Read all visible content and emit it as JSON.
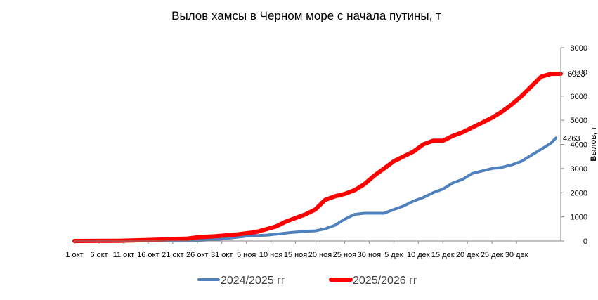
{
  "chart_data": {
    "type": "line",
    "title": "Вылов хамсы в Черном море с начала путины, т",
    "xlabel": "",
    "ylabel": "Вылов, т",
    "ylim": [
      0,
      8000
    ],
    "yticks": [
      0,
      1000,
      2000,
      3000,
      4000,
      5000,
      6000,
      7000,
      8000
    ],
    "y_axis_position": "right",
    "grid": false,
    "legend_position": "bottom",
    "x_tick_labels": [
      "1 окт",
      "6 окт",
      "11 окт",
      "16 окт",
      "21 окт",
      "26 окт",
      "31 окт",
      "5 ноя",
      "10 ноя",
      "15 ноя",
      "20 ноя",
      "25 ноя",
      "30 ноя",
      "5 дек",
      "10 дек",
      "15 дек",
      "20 дек",
      "25 дек",
      "30 дек"
    ],
    "x_day_range": [
      1,
      91
    ],
    "series": [
      {
        "name": "2024/2025 гг",
        "color": "#4F81BD",
        "end_label": "4263",
        "points": [
          [
            1,
            0
          ],
          [
            10,
            0
          ],
          [
            20,
            5
          ],
          [
            26,
            20
          ],
          [
            30,
            60
          ],
          [
            33,
            130
          ],
          [
            36,
            200
          ],
          [
            38,
            220
          ],
          [
            40,
            240
          ],
          [
            42,
            280
          ],
          [
            45,
            350
          ],
          [
            48,
            400
          ],
          [
            50,
            420
          ],
          [
            52,
            500
          ],
          [
            54,
            650
          ],
          [
            56,
            900
          ],
          [
            58,
            1100
          ],
          [
            60,
            1150
          ],
          [
            62,
            1150
          ],
          [
            64,
            1150
          ],
          [
            66,
            1300
          ],
          [
            68,
            1450
          ],
          [
            70,
            1650
          ],
          [
            72,
            1800
          ],
          [
            74,
            2000
          ],
          [
            76,
            2150
          ],
          [
            78,
            2400
          ],
          [
            80,
            2550
          ],
          [
            82,
            2800
          ],
          [
            84,
            2900
          ],
          [
            86,
            3000
          ],
          [
            88,
            3050
          ],
          [
            90,
            3150
          ],
          [
            92,
            3300
          ],
          [
            94,
            3550
          ],
          [
            96,
            3800
          ],
          [
            98,
            4050
          ],
          [
            99,
            4263
          ]
        ]
      },
      {
        "name": "2025/2026 гг",
        "color": "#FF0000",
        "end_label": "6923",
        "points": [
          [
            1,
            0
          ],
          [
            10,
            10
          ],
          [
            16,
            40
          ],
          [
            20,
            70
          ],
          [
            24,
            100
          ],
          [
            26,
            150
          ],
          [
            30,
            200
          ],
          [
            34,
            270
          ],
          [
            38,
            370
          ],
          [
            42,
            600
          ],
          [
            44,
            800
          ],
          [
            46,
            950
          ],
          [
            48,
            1100
          ],
          [
            50,
            1300
          ],
          [
            52,
            1700
          ],
          [
            54,
            1850
          ],
          [
            56,
            1950
          ],
          [
            58,
            2100
          ],
          [
            60,
            2350
          ],
          [
            62,
            2700
          ],
          [
            64,
            3000
          ],
          [
            66,
            3300
          ],
          [
            68,
            3500
          ],
          [
            70,
            3700
          ],
          [
            72,
            4000
          ],
          [
            74,
            4150
          ],
          [
            76,
            4150
          ],
          [
            78,
            4350
          ],
          [
            80,
            4500
          ],
          [
            82,
            4700
          ],
          [
            84,
            4900
          ],
          [
            86,
            5100
          ],
          [
            88,
            5350
          ],
          [
            90,
            5650
          ],
          [
            92,
            6000
          ],
          [
            94,
            6400
          ],
          [
            96,
            6800
          ],
          [
            98,
            6920
          ],
          [
            100,
            6923
          ]
        ]
      }
    ]
  }
}
